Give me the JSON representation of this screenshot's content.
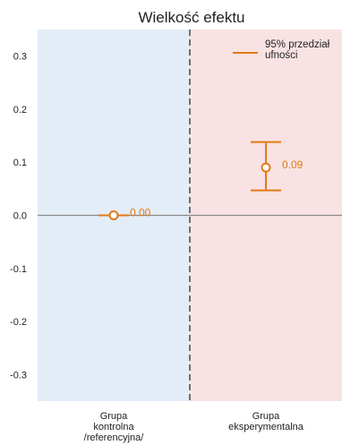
{
  "chart_data": {
    "type": "scatter",
    "title": "Wielkość efektu",
    "xlabel": "",
    "ylabel": "",
    "ylim": [
      -0.35,
      0.35
    ],
    "yticks": [
      -0.3,
      -0.2,
      -0.1,
      0.0,
      0.1,
      0.2,
      0.3
    ],
    "ytick_labels": [
      "-0.3",
      "-0.2",
      "-0.1",
      "0.0",
      "0.1",
      "0.2",
      "0.3"
    ],
    "grid": false,
    "reference_line_y": 0.0,
    "categories": [
      "Grupa\nkontrolna\n/referencyjna/",
      "Grupa\neksperymentalna"
    ],
    "points": [
      {
        "category_index": 0,
        "value": 0.0,
        "label": "0.00",
        "ci_low": null,
        "ci_high": null
      },
      {
        "category_index": 1,
        "value": 0.09,
        "label": "0.09",
        "ci_low": 0.047,
        "ci_high": 0.138
      }
    ],
    "legend": {
      "entries": [
        "95% przedział\nufności"
      ],
      "position": "top-right"
    },
    "colors": {
      "accent": "#e07b14",
      "control_bg": "#e3edf8",
      "experimental_bg": "#f9e2e3",
      "zero_line": "#8a8a8a",
      "divider": "#6f6f6f",
      "text": "#222222"
    }
  }
}
